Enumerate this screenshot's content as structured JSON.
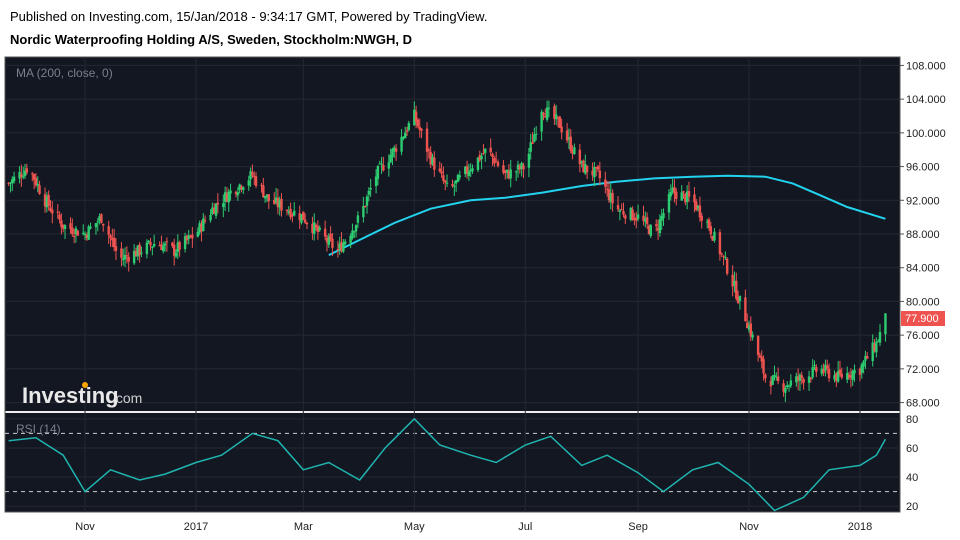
{
  "header": {
    "published": "Published on Investing.com, 15/Jan/2018 - 9:34:17 GMT, Powered by TradingView.",
    "title": "Nordic Waterproofing Holding A/S, Sweden, Stockholm:NWGH, D"
  },
  "watermark": {
    "brand": "Investing",
    "suffix": ".com"
  },
  "colors": {
    "background": "#131722",
    "grid": "#242833",
    "up": "#26a69a",
    "up_candle": "#2ecc71",
    "down": "#ef5350",
    "ma": "#22d3ee",
    "rsi": "#1fb5b0",
    "price_tag": "#ef5350"
  },
  "chart_data": [
    {
      "type": "candlestick",
      "title": "Nordic Waterproofing Holding A/S, Sweden, Stockholm:NWGH, D",
      "indicator_label": "MA (200, close, 0)",
      "x_ticks": [
        "Nov",
        "2017",
        "Mar",
        "May",
        "Jul",
        "Sep",
        "Nov",
        "2018"
      ],
      "y_ticks": [
        "108.000",
        "104.000",
        "100.000",
        "96.000",
        "92.000",
        "88.000",
        "84.000",
        "80.000",
        "76.000",
        "72.000",
        "68.000"
      ],
      "ylim": [
        67,
        109
      ],
      "last_price": "77.900",
      "series": [
        {
          "name": "price_close_path",
          "x": [
            "2016-09-20",
            "2016-10-01",
            "2016-10-10",
            "2016-10-20",
            "2016-11-01",
            "2016-11-10",
            "2016-11-20",
            "2016-12-01",
            "2016-12-10",
            "2016-12-20",
            "2017-01-01",
            "2017-01-10",
            "2017-01-20",
            "2017-02-01",
            "2017-02-10",
            "2017-02-20",
            "2017-03-01",
            "2017-03-10",
            "2017-03-20",
            "2017-04-01",
            "2017-04-10",
            "2017-04-20",
            "2017-05-01",
            "2017-05-10",
            "2017-05-20",
            "2017-06-01",
            "2017-06-10",
            "2017-06-20",
            "2017-07-01",
            "2017-07-10",
            "2017-07-20",
            "2017-08-01",
            "2017-08-10",
            "2017-08-20",
            "2017-09-01",
            "2017-09-10",
            "2017-09-20",
            "2017-10-01",
            "2017-10-10",
            "2017-10-20",
            "2017-11-01",
            "2017-11-10",
            "2017-11-20",
            "2017-12-01",
            "2017-12-10",
            "2017-12-20",
            "2018-01-01",
            "2018-01-10",
            "2018-01-15"
          ],
          "values": [
            94,
            96,
            92,
            89,
            88,
            90,
            85,
            86,
            87,
            86,
            88,
            91,
            93,
            95,
            92,
            91,
            90,
            88,
            86,
            90,
            95,
            98,
            102,
            97,
            93,
            96,
            98,
            95,
            96,
            103,
            101,
            96,
            95,
            91,
            90,
            88,
            93,
            92,
            89,
            84,
            77,
            71,
            70,
            71,
            72,
            71,
            72,
            75,
            77.9
          ]
        },
        {
          "name": "MA (200, close, 0)",
          "x": [
            "2017-03-15",
            "2017-04-01",
            "2017-04-20",
            "2017-05-10",
            "2017-06-01",
            "2017-06-20",
            "2017-07-10",
            "2017-08-01",
            "2017-08-20",
            "2017-09-10",
            "2017-10-01",
            "2017-10-20",
            "2017-11-10",
            "2017-11-25",
            "2017-12-10",
            "2017-12-25",
            "2018-01-15"
          ],
          "values": [
            85.5,
            87.3,
            89.3,
            91.0,
            92.0,
            92.3,
            92.9,
            93.7,
            94.2,
            94.6,
            94.8,
            94.9,
            94.8,
            94.0,
            92.6,
            91.2,
            89.8
          ]
        }
      ]
    },
    {
      "type": "line",
      "title": "RSI (14)",
      "y_ticks": [
        "80",
        "60",
        "40",
        "20"
      ],
      "ylim": [
        16,
        84
      ],
      "reference_lines": [
        70,
        30
      ],
      "series": [
        {
          "name": "RSI (14)",
          "x": [
            "2016-09-20",
            "2016-10-05",
            "2016-10-20",
            "2016-11-01",
            "2016-11-15",
            "2016-12-01",
            "2016-12-15",
            "2017-01-01",
            "2017-01-15",
            "2017-02-01",
            "2017-02-15",
            "2017-03-01",
            "2017-03-15",
            "2017-04-01",
            "2017-04-15",
            "2017-05-01",
            "2017-05-15",
            "2017-06-01",
            "2017-06-15",
            "2017-07-01",
            "2017-07-15",
            "2017-08-01",
            "2017-08-15",
            "2017-09-01",
            "2017-09-15",
            "2017-10-01",
            "2017-10-15",
            "2017-11-01",
            "2017-11-15",
            "2017-12-01",
            "2017-12-15",
            "2018-01-01",
            "2018-01-10",
            "2018-01-15"
          ],
          "values": [
            65,
            67,
            55,
            30,
            45,
            38,
            42,
            50,
            55,
            70,
            65,
            45,
            50,
            38,
            60,
            80,
            62,
            55,
            50,
            62,
            68,
            48,
            55,
            43,
            30,
            45,
            50,
            35,
            17,
            26,
            45,
            48,
            55,
            66
          ]
        }
      ]
    }
  ]
}
